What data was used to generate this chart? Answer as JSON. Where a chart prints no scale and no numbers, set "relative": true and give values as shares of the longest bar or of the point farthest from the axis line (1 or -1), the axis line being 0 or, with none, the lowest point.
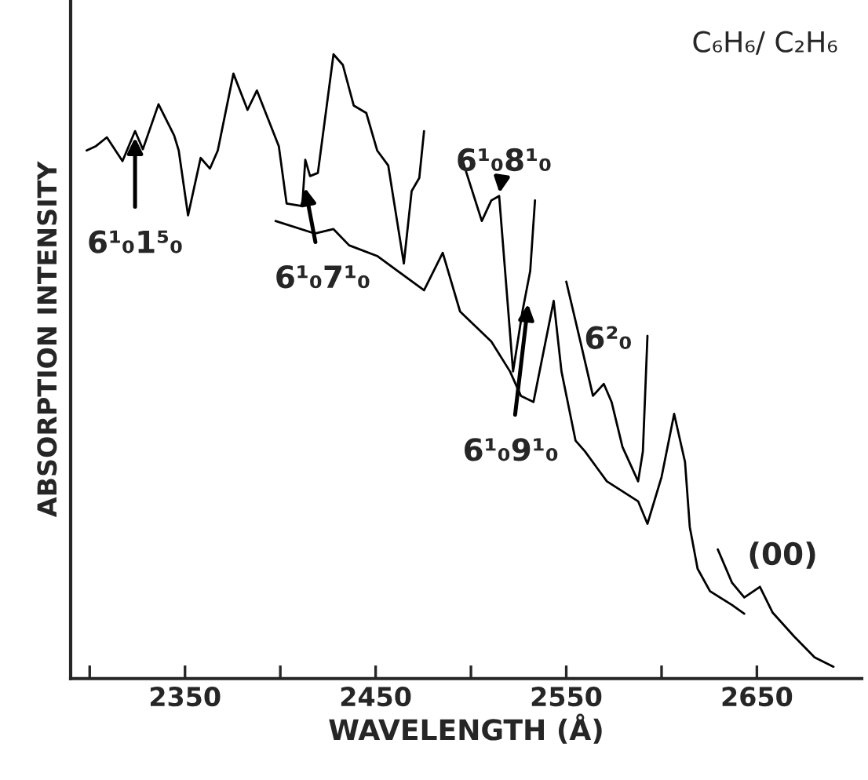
{
  "chart_data": {
    "type": "line",
    "relative": true,
    "title": "C₆H₆/ C₂H₆",
    "xlabel": "WAVELENGTH (Å)",
    "ylabel": "ABSORPTION INTENSITY",
    "xlim": [
      2290,
      2705
    ],
    "xticks": [
      {
        "value": 2300,
        "label": null
      },
      2350,
      {
        "value": 2400,
        "label": null
      },
      2450,
      {
        "value": 2500,
        "label": null
      },
      2550,
      {
        "value": 2600,
        "label": null
      },
      2650
    ],
    "tick_labels": "x",
    "grid": false,
    "legend": false,
    "marker": "none",
    "line_style": "solid",
    "series": [
      {
        "color": "#000000",
        "x": [
          2298.4,
          2303.3,
          2309.0,
          2317.2,
          2323.8,
          2327.9,
          2336.1,
          2344.3,
          2346.7,
          2351.6,
          2358.2,
          2363.1,
          2367.2,
          2375.4,
          2382.8,
          2387.7,
          2399.2,
          2403.3,
          2411.5,
          2413.1,
          2415.6,
          2419.7,
          2427.9,
          2432.8,
          2438.5,
          2445.1,
          2450.8,
          2456.6,
          2464.8,
          2468.9,
          2472.9,
          2475.4
        ],
        "values": [
          0.846,
          0.853,
          0.867,
          0.829,
          0.877,
          0.848,
          0.92,
          0.87,
          0.846,
          0.742,
          0.834,
          0.817,
          0.846,
          0.969,
          0.911,
          0.942,
          0.853,
          0.761,
          0.757,
          0.831,
          0.805,
          0.81,
          1.0,
          0.983,
          0.918,
          0.906,
          0.846,
          0.822,
          0.665,
          0.781,
          0.802,
          0.877
        ]
      },
      {
        "color": "#000000",
        "x": [
          2397.5,
          2418.0,
          2427.9,
          2436.1,
          2450.8,
          2475.4,
          2485.2,
          2494.3,
          2510.7,
          2520.5,
          2526.2,
          2532.8,
          2543.4,
          2547.5,
          2554.9,
          2559.8,
          2571.3,
          2587.7,
          2592.6,
          2600.0,
          2606.6,
          2612.3,
          2614.8,
          2618.9,
          2625.4,
          2636.9,
          2643.4
        ],
        "values": [
          0.733,
          0.713,
          0.72,
          0.694,
          0.677,
          0.622,
          0.682,
          0.588,
          0.54,
          0.492,
          0.453,
          0.443,
          0.605,
          0.492,
          0.381,
          0.364,
          0.316,
          0.284,
          0.248,
          0.323,
          0.424,
          0.347,
          0.243,
          0.176,
          0.14,
          0.118,
          0.104
        ]
      },
      {
        "color": "#000000",
        "x": [
          2495.9,
          2505.7,
          2510.7,
          2514.8,
          2522.1,
          2527.0,
          2531.1,
          2533.6
        ],
        "values": [
          0.827,
          0.733,
          0.766,
          0.773,
          0.492,
          0.588,
          0.653,
          0.766
        ]
      },
      {
        "color": "#000000",
        "x": [
          2550.0,
          2557.4,
          2564.0,
          2569.7,
          2573.8,
          2579.5,
          2587.7,
          2590.2,
          2592.6
        ],
        "values": [
          0.636,
          0.54,
          0.453,
          0.472,
          0.443,
          0.371,
          0.316,
          0.364,
          0.549
        ]
      },
      {
        "color": "#000000",
        "x": [
          2629.5,
          2636.9,
          2643.4,
          2651.6,
          2658.2,
          2669.7,
          2680.3,
          2690.2
        ],
        "values": [
          0.207,
          0.154,
          0.13,
          0.147,
          0.106,
          0.067,
          0.034,
          0.019
        ]
      }
    ],
    "annotations": [
      {
        "text": "6¹₀1⁵₀",
        "x": 2323.8,
        "y": 0.877
      },
      {
        "text": "6¹₀7¹₀",
        "x": 2413,
        "y": 0.786
      },
      {
        "text": "6¹₀8¹₀",
        "x": 2515,
        "y": 0.778
      },
      {
        "text": "6¹₀9¹₀",
        "x": 2530,
        "y": 0.6
      },
      {
        "text": "6²₀",
        "x": 2569.7,
        "y": 0.472
      },
      {
        "text": "(00)",
        "x": 2652,
        "y": 0.147
      }
    ]
  }
}
